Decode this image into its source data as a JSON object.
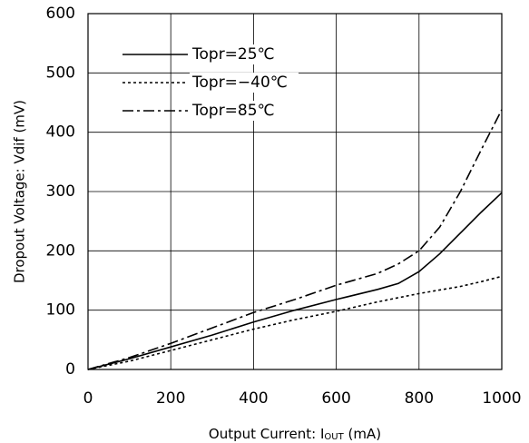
{
  "chart_data": {
    "type": "line",
    "x_label": [
      "Output Current: I",
      "OUT",
      " (mA)"
    ],
    "y_label": "Dropout Voltage: Vdif (mV)",
    "x": [
      0,
      100,
      200,
      300,
      400,
      500,
      600,
      700,
      750,
      800,
      850,
      900,
      950,
      1000
    ],
    "series": [
      {
        "name": "Topr=25℃",
        "color": "#000000",
        "dash": "solid",
        "values": [
          0,
          18,
          38,
          58,
          80,
          100,
          118,
          135,
          145,
          165,
          195,
          230,
          265,
          298
        ]
      },
      {
        "name": "Topr=−40℃",
        "color": "#000000",
        "dash": "dotted",
        "values": [
          0,
          14,
          32,
          50,
          68,
          84,
          98,
          114,
          121,
          128,
          134,
          140,
          148,
          157
        ]
      },
      {
        "name": "Topr=85℃",
        "color": "#000000",
        "dash": "dashdot",
        "values": [
          0,
          20,
          44,
          70,
          96,
          118,
          142,
          162,
          178,
          200,
          240,
          300,
          370,
          438
        ]
      }
    ],
    "xlim": [
      0,
      1000
    ],
    "xticks": [
      0,
      200,
      400,
      600,
      800,
      1000
    ],
    "ylim": [
      0,
      600
    ],
    "yticks": [
      0,
      100,
      200,
      300,
      400,
      500,
      600
    ],
    "grid": true,
    "legend": "upper-left"
  }
}
